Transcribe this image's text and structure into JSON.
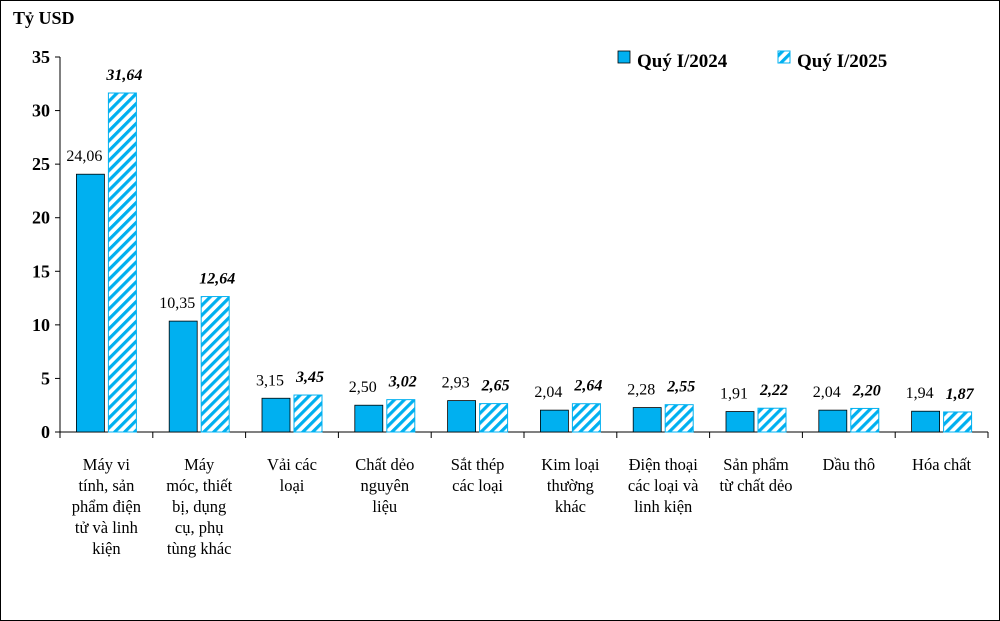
{
  "chart_data": {
    "type": "bar",
    "ylabel": "Tỷ USD",
    "ylim": [
      0,
      35
    ],
    "yticks": [
      "0",
      "5",
      "10",
      "15",
      "20",
      "25",
      "30",
      "35"
    ],
    "grid": false,
    "legend_position": "top-right",
    "categories": [
      "Máy vi tính, sản phẩm điện tử và linh kiện",
      "Máy móc, thiết bị, dụng cụ, phụ tùng khác",
      "Vải các loại",
      "Chất dẻo nguyên liệu",
      "Sắt thép các loại",
      "Kim loại thường khác",
      "Điện thoại các loại và linh kiện",
      "Sản phẩm từ chất dẻo",
      "Dầu thô",
      "Hóa chất"
    ],
    "category_lines": [
      [
        "Máy vi",
        "tính, sản",
        "phẩm điện",
        "tử và linh",
        "kiện"
      ],
      [
        "Máy",
        "móc, thiết",
        "bị, dụng",
        "cụ, phụ",
        "tùng khác"
      ],
      [
        "Vải các",
        "loại"
      ],
      [
        "Chất dẻo",
        "nguyên",
        "liệu"
      ],
      [
        "Sắt thép",
        "các loại"
      ],
      [
        "Kim loại",
        "thường",
        "khác"
      ],
      [
        "Điện thoại",
        "các loại và",
        "linh kiện"
      ],
      [
        "Sản phẩm",
        "từ chất dẻo"
      ],
      [
        "Dầu thô"
      ],
      [
        "Hóa chất"
      ]
    ],
    "series": [
      {
        "name": "Quý I/2024",
        "values": [
          24.06,
          10.35,
          3.15,
          2.5,
          2.93,
          2.04,
          2.28,
          1.91,
          2.04,
          1.94
        ],
        "labels": [
          "24,06",
          "10,35",
          "3,15",
          "2,50",
          "2,93",
          "2,04",
          "2,28",
          "1,91",
          "2,04",
          "1,94"
        ],
        "color": "#00B0F0",
        "style": "solid"
      },
      {
        "name": "Quý I/2025",
        "values": [
          31.64,
          12.64,
          3.45,
          3.02,
          2.65,
          2.64,
          2.55,
          2.22,
          2.2,
          1.87
        ],
        "labels": [
          "31,64",
          "12,64",
          "3,45",
          "3,02",
          "2,65",
          "2,64",
          "2,55",
          "2,22",
          "2,20",
          "1,87"
        ],
        "color": "#00B0F0",
        "style": "hatched"
      }
    ]
  }
}
